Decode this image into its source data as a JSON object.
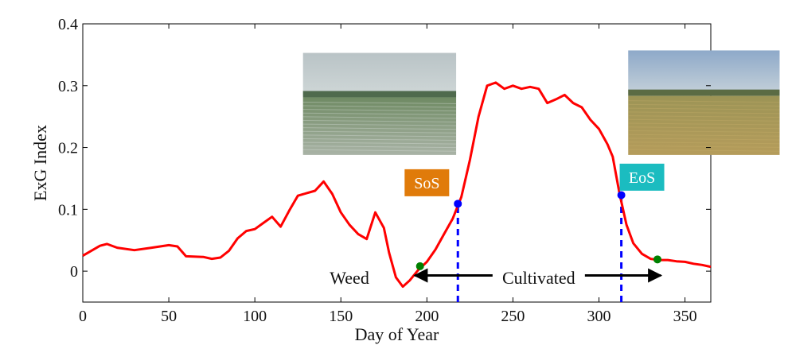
{
  "chart_data": {
    "type": "line",
    "title": "",
    "xlabel": "Day of Year",
    "ylabel": "ExG Index",
    "xlim": [
      0,
      365
    ],
    "ylim": [
      -0.05,
      0.4
    ],
    "xticks": [
      0,
      50,
      100,
      150,
      200,
      250,
      300,
      350
    ],
    "yticks": [
      0,
      0.1,
      0.2,
      0.3,
      0.4
    ],
    "ytick_labels": [
      "0",
      "0.1",
      "0.2",
      "0.3",
      "0.4"
    ],
    "grid": false,
    "legend": "none",
    "series": [
      {
        "color": "#ff0000",
        "x": [
          0,
          5,
          10,
          14,
          20,
          30,
          40,
          50,
          55,
          60,
          70,
          75,
          80,
          85,
          90,
          95,
          100,
          105,
          110,
          115,
          120,
          125,
          130,
          135,
          140,
          145,
          150,
          155,
          160,
          165,
          170,
          175,
          178,
          182,
          186,
          190,
          195,
          200,
          205,
          210,
          215,
          220,
          225,
          230,
          235,
          240,
          245,
          250,
          255,
          260,
          265,
          270,
          275,
          280,
          285,
          290,
          295,
          300,
          305,
          308,
          312,
          316,
          320,
          325,
          330,
          335,
          340,
          345,
          350,
          355,
          360,
          365
        ],
        "y": [
          0.025,
          0.033,
          0.041,
          0.044,
          0.038,
          0.034,
          0.038,
          0.042,
          0.04,
          0.024,
          0.023,
          0.02,
          0.022,
          0.033,
          0.053,
          0.065,
          0.068,
          0.078,
          0.088,
          0.072,
          0.098,
          0.122,
          0.126,
          0.13,
          0.145,
          0.125,
          0.095,
          0.075,
          0.06,
          0.052,
          0.095,
          0.07,
          0.03,
          -0.01,
          -0.025,
          -0.015,
          0.002,
          0.015,
          0.035,
          0.06,
          0.085,
          0.12,
          0.18,
          0.25,
          0.3,
          0.305,
          0.295,
          0.3,
          0.295,
          0.298,
          0.295,
          0.272,
          0.278,
          0.285,
          0.272,
          0.265,
          0.245,
          0.23,
          0.205,
          0.185,
          0.125,
          0.075,
          0.045,
          0.028,
          0.02,
          0.018,
          0.018,
          0.016,
          0.015,
          0.012,
          0.01,
          0.007
        ]
      }
    ],
    "points": [
      {
        "x": 196,
        "y": 0.008,
        "color": "#008000"
      },
      {
        "x": 218,
        "y": 0.109,
        "color": "#0000ff"
      },
      {
        "x": 313,
        "y": 0.123,
        "color": "#0000ff"
      },
      {
        "x": 334,
        "y": 0.019,
        "color": "#008000"
      }
    ],
    "vlines": [
      {
        "x": 218,
        "y_from": -0.05,
        "y_to": 0.109,
        "color": "#0000ff"
      },
      {
        "x": 313,
        "y_from": -0.05,
        "y_to": 0.123,
        "color": "#0000ff"
      }
    ],
    "arrow": {
      "x_from": 193,
      "x_to": 336,
      "y": -0.007,
      "color": "#000000"
    },
    "annotations": {
      "weed": {
        "text": "Weed",
        "x": 155,
        "y": -0.01
      },
      "cultivated": {
        "text": "Cultivated",
        "x": 265,
        "y": -0.01
      },
      "sos": {
        "text": "SoS",
        "x": 200,
        "y": 0.143,
        "color": "#e07b0a"
      },
      "eos": {
        "text": "EoS",
        "x": 325,
        "y": 0.152,
        "color": "#1bbcc0"
      }
    },
    "photos": [
      {
        "name": "early-season-field-photo",
        "x_from": 128,
        "x_to": 217,
        "y_from": 0.188,
        "y_to": 0.353
      },
      {
        "name": "end-season-field-photo",
        "x_from": 317,
        "x_to": 405,
        "y_from": 0.188,
        "y_to": 0.357
      }
    ]
  }
}
